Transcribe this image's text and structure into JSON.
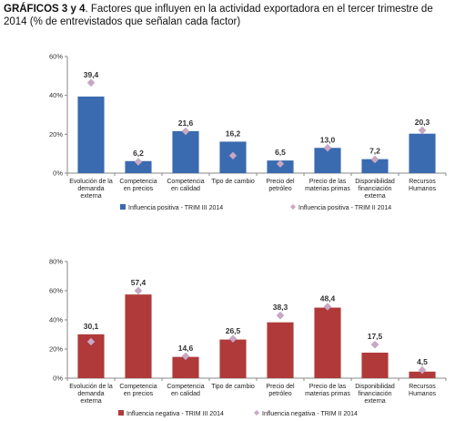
{
  "header": {
    "title_bold": "GRÁFICOS 3 y 4",
    "title_rest": ". Factores que influyen en la actividad exportadora en el tercer trimestre de 2014 (% de entrevistados que señalan cada factor)"
  },
  "chart_data": [
    {
      "type": "bar",
      "categories": [
        [
          "Evolución de la",
          "demanda",
          "externa"
        ],
        [
          "Competencia",
          "en precios"
        ],
        [
          "Competencia",
          "en calidad"
        ],
        [
          "Tipo de cambio"
        ],
        [
          "Precio del",
          "petróleo"
        ],
        [
          "Precio de las",
          "materias primas"
        ],
        [
          "Disponibilidad",
          "financiación",
          "externa"
        ],
        [
          "Recursos",
          "Humanos"
        ]
      ],
      "series": [
        {
          "name": "Influencia positiva - TRIM III 2014",
          "values": [
            39.4,
            6.2,
            21.6,
            16.2,
            6.5,
            13.0,
            7.2,
            20.3
          ],
          "labels": [
            "39,4",
            "6,2",
            "21,6",
            "16,2",
            "6,5",
            "13,0",
            "7,2",
            "20,3"
          ],
          "kind": "bar",
          "color": "#3a6ab0"
        },
        {
          "name": "Influencia positiva - TRIM II 2014",
          "values": [
            46.5,
            5.8,
            21.5,
            9.0,
            4.8,
            13.0,
            7.0,
            22.0
          ],
          "kind": "marker",
          "color": "#c8a8c4"
        }
      ],
      "yticks": [
        "0%",
        "20%",
        "40%",
        "60%"
      ],
      "ylim": [
        0,
        60
      ],
      "legend": "bottom"
    },
    {
      "type": "bar",
      "categories": [
        [
          "Evolución de la",
          "demanda",
          "externa"
        ],
        [
          "Competencia",
          "en precios"
        ],
        [
          "Competencia",
          "en calidad"
        ],
        [
          "Tipo de cambio"
        ],
        [
          "Precio del",
          "petróleo"
        ],
        [
          "Precio de las",
          "materias primas"
        ],
        [
          "Disponibilidad",
          "financiación",
          "externa"
        ],
        [
          "Recursos",
          "Humanos"
        ]
      ],
      "series": [
        {
          "name": "Influencia negativa - TRIM III 2014",
          "values": [
            30.1,
            57.4,
            14.6,
            26.5,
            38.3,
            48.4,
            17.5,
            4.5
          ],
          "labels": [
            "30,1",
            "57,4",
            "14,6",
            "26,5",
            "38,3",
            "48,4",
            "17,5",
            "4,5"
          ],
          "kind": "bar",
          "color": "#b03a3a"
        },
        {
          "name": "Influencia negativa - TRIM II 2014",
          "values": [
            25.0,
            60.0,
            15.0,
            27.0,
            43.0,
            49.0,
            23.0,
            5.5
          ],
          "kind": "marker",
          "color": "#c8a8c4"
        }
      ],
      "yticks": [
        "0%",
        "20%",
        "40%",
        "60%",
        "80%"
      ],
      "ylim": [
        0,
        80
      ],
      "legend": "bottom"
    }
  ]
}
